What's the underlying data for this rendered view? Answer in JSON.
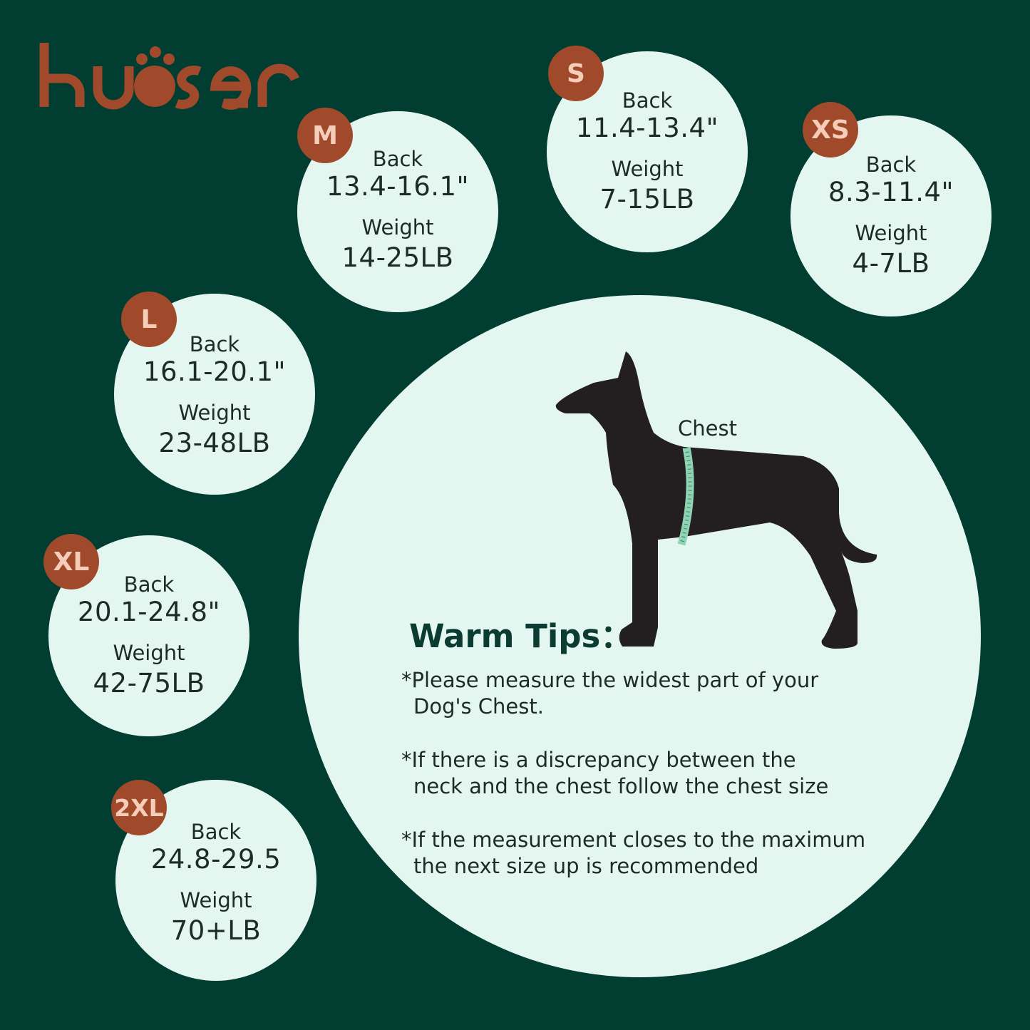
{
  "brand": {
    "logo_text": "kuoser",
    "color": "#a04a2b"
  },
  "colors": {
    "background": "#023d31",
    "circle": "#e3f6ef",
    "badge": "#a04a2b",
    "badge_text": "#f6cdb8",
    "tape": "#8fd3b5"
  },
  "sizes": [
    {
      "size": "M",
      "back_label": "Back",
      "back": "13.4-16.1\"",
      "weight_label": "Weight",
      "weight": "14-25LB"
    },
    {
      "size": "S",
      "back_label": "Back",
      "back": "11.4-13.4\"",
      "weight_label": "Weight",
      "weight": "7-15LB"
    },
    {
      "size": "XS",
      "back_label": "Back",
      "back": "8.3-11.4\"",
      "weight_label": "Weight",
      "weight": "4-7LB"
    },
    {
      "size": "L",
      "back_label": "Back",
      "back": "16.1-20.1\"",
      "weight_label": "Weight",
      "weight": "23-48LB"
    },
    {
      "size": "XL",
      "back_label": "Back",
      "back": "20.1-24.8\"",
      "weight_label": "Weight",
      "weight": "42-75LB"
    },
    {
      "size": "2XL",
      "back_label": "Back",
      "back": "24.8-29.5",
      "weight_label": "Weight",
      "weight": "70+LB"
    }
  ],
  "illustration": {
    "chest_label": "Chest",
    "icon": "dog-silhouette-with-measuring-tape"
  },
  "tips": {
    "title": "Warm Tips：",
    "items": [
      {
        "line1": "*Please measure the widest part of your",
        "line2": "Dog's Chest."
      },
      {
        "line1": "*If there is a discrepancy between the",
        "line2": "neck and the chest follow the chest size"
      },
      {
        "line1": "*If the measurement closes to the maximum",
        "line2": "the next size up is recommended"
      }
    ]
  }
}
